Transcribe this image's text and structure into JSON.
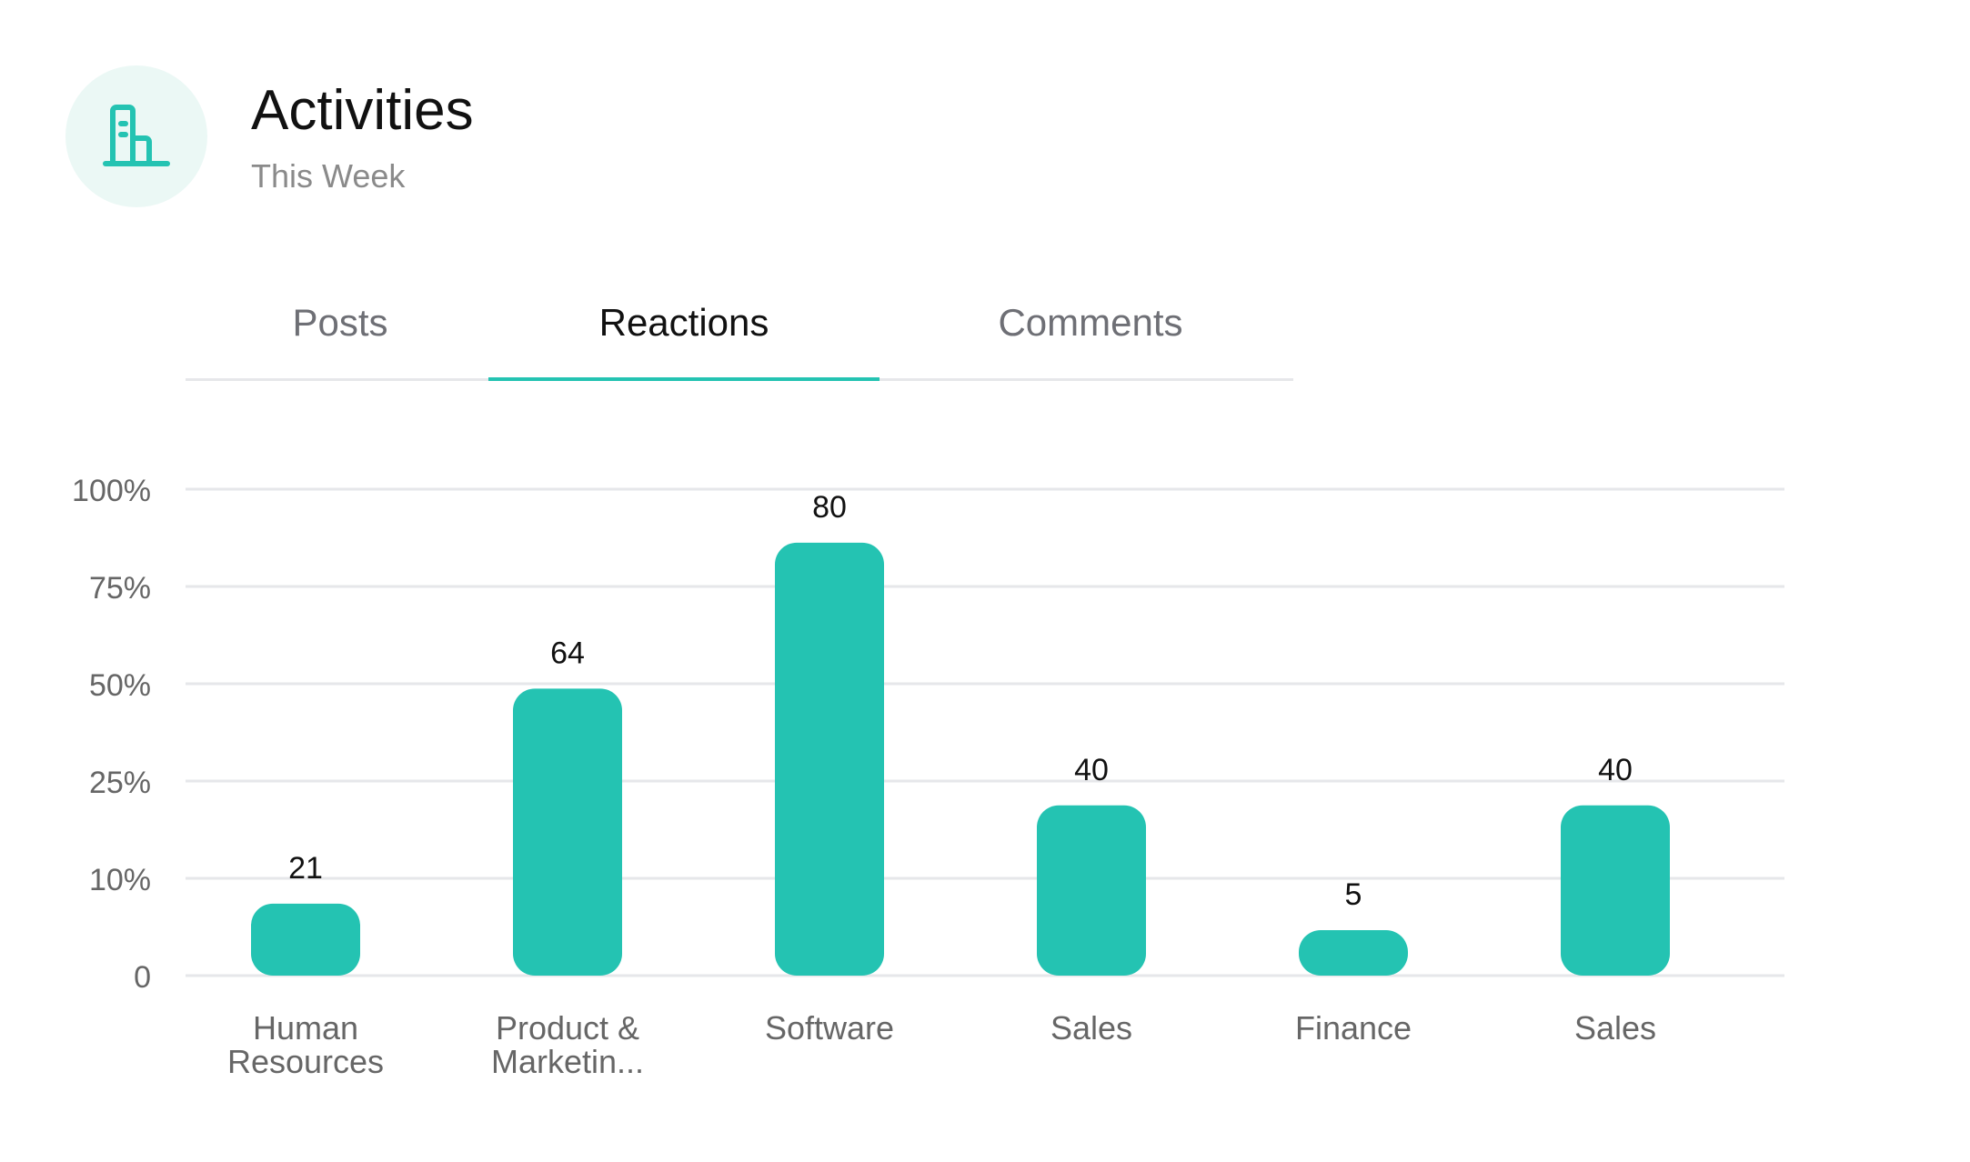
{
  "header": {
    "title": "Activities",
    "subtitle": "This Week",
    "icon": "building-icon"
  },
  "tabs": [
    {
      "label": "Posts",
      "active": false
    },
    {
      "label": "Reactions",
      "active": true
    },
    {
      "label": "Comments",
      "active": false
    }
  ],
  "colors": {
    "accent": "#24c3b2",
    "icon_bg": "#ebf8f5",
    "grid": "#e6e7ea",
    "axis_text": "#666666",
    "label_text": "#666666",
    "value_text": "#111111"
  },
  "chart_data": {
    "type": "bar",
    "y_ticks": [
      "0",
      "10%",
      "25%",
      "50%",
      "75%",
      "100%"
    ],
    "bars": [
      {
        "label_lines": [
          "Human",
          "Resources"
        ],
        "value": 21,
        "level": 0.148
      },
      {
        "label_lines": [
          "Product &",
          "Marketin..."
        ],
        "value": 64,
        "level": 0.59
      },
      {
        "label_lines": [
          "Software"
        ],
        "value": 80,
        "level": 0.89
      },
      {
        "label_lines": [
          "Sales"
        ],
        "value": 40,
        "level": 0.35
      },
      {
        "label_lines": [
          "Finance"
        ],
        "value": 5,
        "level": 0.05
      },
      {
        "label_lines": [
          "Sales"
        ],
        "value": 40,
        "level": 0.35
      }
    ],
    "grid": true
  }
}
